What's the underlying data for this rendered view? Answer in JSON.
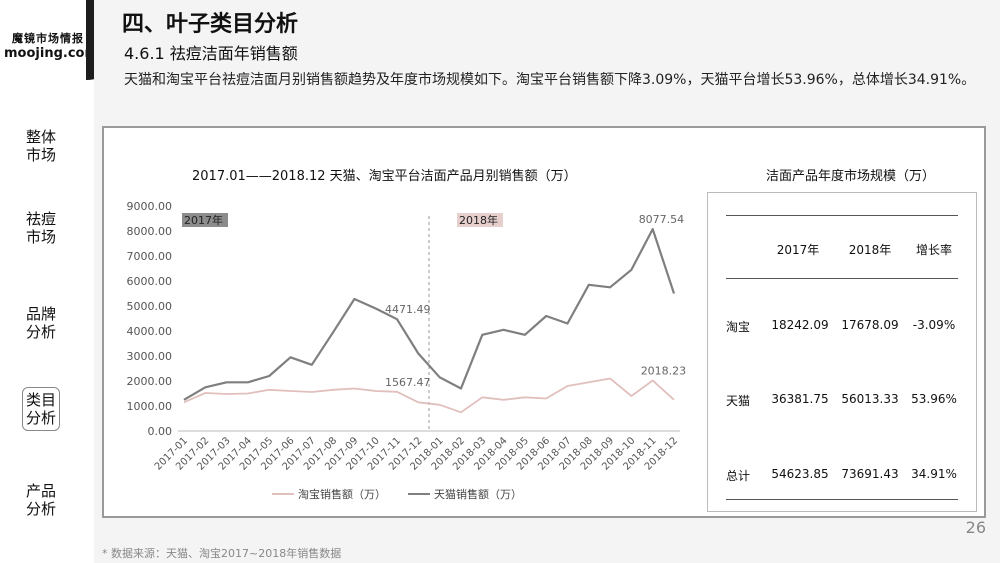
{
  "brand": {
    "cn": "魔镜市场情报",
    "en": "moojing.com"
  },
  "nav": [
    "整体市场",
    "祛痘市场",
    "品牌分析",
    "类目分析",
    "产品分析"
  ],
  "page": {
    "title": "四、叶子类目分析",
    "subtitle": "4.6.1 祛痘洁面年销售额",
    "description": "天猫和淘宝平台祛痘洁面月别销售额趋势及年度市场规模如下。淘宝平台销售额下降3.09%，天猫平台增长53.96%，总体增长34.91%。",
    "page_number": "26",
    "footnote": "* 数据来源：天猫、淘宝2017~2018年销售数据"
  },
  "chart_data": {
    "type": "line",
    "title": "2017.01——2018.12 天猫、淘宝平台洁面产品月别销售额（万）",
    "categories": [
      "2017-01",
      "2017-02",
      "2017-03",
      "2017-04",
      "2017-05",
      "2017-06",
      "2017-07",
      "2017-08",
      "2017-09",
      "2017-10",
      "2017-11",
      "2017-12",
      "2018-01",
      "2018-02",
      "2018-03",
      "2018-04",
      "2018-05",
      "2018-06",
      "2018-07",
      "2018-08",
      "2018-09",
      "2018-10",
      "2018-11",
      "2018-12"
    ],
    "series": [
      {
        "name": "淘宝销售额（万）",
        "color": "#e0bfbd",
        "values": [
          1150,
          1520,
          1480,
          1500,
          1650,
          1600,
          1560,
          1650,
          1700,
          1600,
          1567.47,
          1150,
          1050,
          750,
          1350,
          1250,
          1350,
          1300,
          1800,
          1950,
          2100,
          1400,
          2018.23,
          1250
        ]
      },
      {
        "name": "天猫销售额（万）",
        "color": "#7f7f7f",
        "values": [
          1250,
          1750,
          1950,
          1950,
          2200,
          2950,
          2650,
          3950,
          5280,
          4900,
          4471.49,
          3100,
          2150,
          1700,
          3850,
          4050,
          3850,
          4600,
          4300,
          5850,
          5750,
          6450,
          8077.54,
          5500
        ]
      }
    ],
    "ylim": [
      0,
      9000
    ],
    "yticks": [
      "0.00",
      "1000.00",
      "2000.00",
      "3000.00",
      "4000.00",
      "5000.00",
      "6000.00",
      "7000.00",
      "8000.00",
      "9000.00"
    ],
    "year_labels": [
      "2017年",
      "2018年"
    ],
    "annotations": [
      {
        "text": "8077.54",
        "series": 1,
        "index": 22
      },
      {
        "text": "4471.49",
        "series": 1,
        "index": 10
      },
      {
        "text": "1567.47",
        "series": 0,
        "index": 10
      },
      {
        "text": "2018.23",
        "series": 0,
        "index": 22
      }
    ],
    "legend": "bottom"
  },
  "table": {
    "title": "洁面产品年度市场规模（万）",
    "headers": [
      "",
      "2017年",
      "2018年",
      "增长率"
    ],
    "rows": [
      [
        "淘宝",
        "18242.09",
        "17678.09",
        "-3.09%"
      ],
      [
        "天猫",
        "36381.75",
        "56013.33",
        "53.96%"
      ],
      [
        "总计",
        "54623.85",
        "73691.43",
        "34.91%"
      ]
    ]
  }
}
